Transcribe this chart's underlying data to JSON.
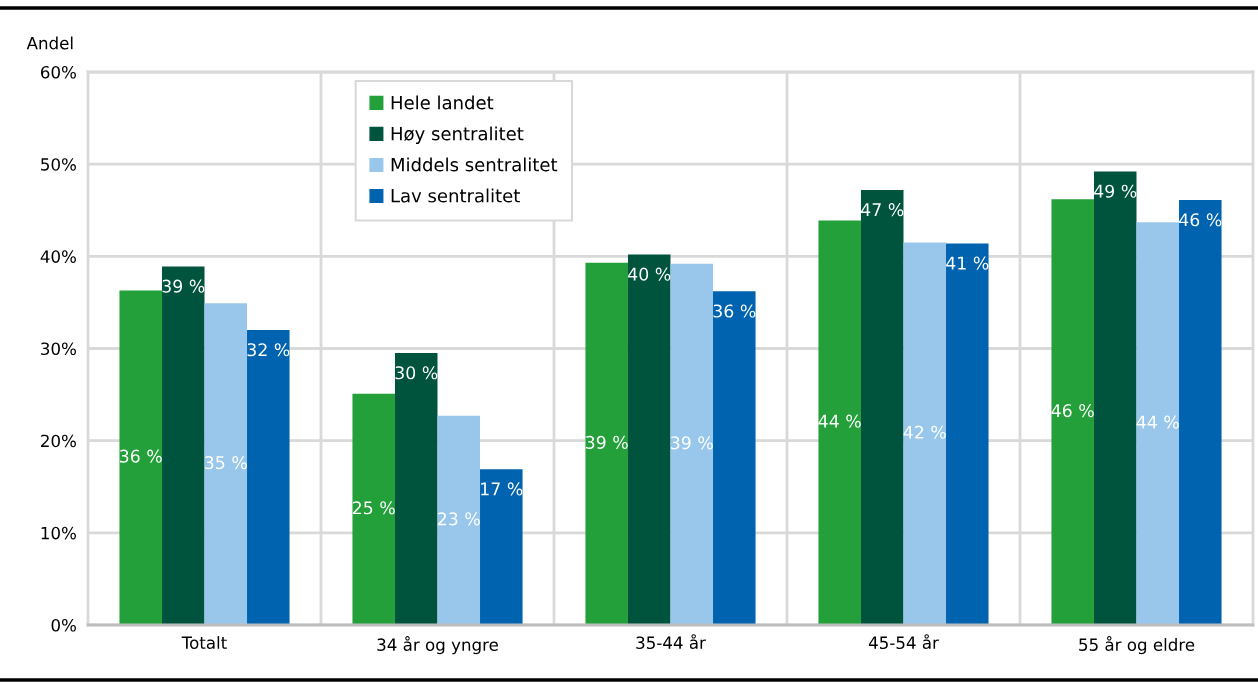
{
  "chart_data": {
    "type": "bar",
    "ylabel": "Andel",
    "categories": [
      "Totalt",
      "34 år og yngre",
      "35-44 år",
      "45-54 år",
      "55 år og eldre"
    ],
    "series": [
      {
        "name": "Hele landet",
        "color": "#23a03a",
        "values": [
          36.3,
          25.1,
          39.3,
          43.9,
          46.2
        ],
        "value_labels": [
          "36 %",
          "25 %",
          "39 %",
          "44 %",
          "46 %"
        ]
      },
      {
        "name": "Høy sentralitet",
        "color": "#00543e",
        "values": [
          38.9,
          29.5,
          40.2,
          47.2,
          49.2
        ],
        "value_labels": [
          "39 %",
          "30 %",
          "40 %",
          "47 %",
          "49 %"
        ]
      },
      {
        "name": "Middels sentralitet",
        "color": "#98c7eb",
        "values": [
          34.9,
          22.7,
          39.2,
          41.5,
          43.7
        ],
        "value_labels": [
          "35 %",
          "23 %",
          "39 %",
          "42 %",
          "44 %"
        ]
      },
      {
        "name": "Lav sentralitet",
        "color": "#0063b0",
        "values": [
          32.0,
          16.9,
          36.2,
          41.4,
          46.1
        ],
        "value_labels": [
          "32 %",
          "17 %",
          "36 %",
          "41 %",
          "46 %"
        ]
      }
    ],
    "ylim": [
      0,
      60
    ],
    "yticks": [
      {
        "value": 0,
        "label": "0%"
      },
      {
        "value": 10,
        "label": "10%"
      },
      {
        "value": 20,
        "label": "20%"
      },
      {
        "value": 30,
        "label": "30%"
      },
      {
        "value": 40,
        "label": "40%"
      },
      {
        "value": 50,
        "label": "50%"
      },
      {
        "value": 60,
        "label": "60%"
      }
    ],
    "grid": true,
    "legend": "top left"
  }
}
